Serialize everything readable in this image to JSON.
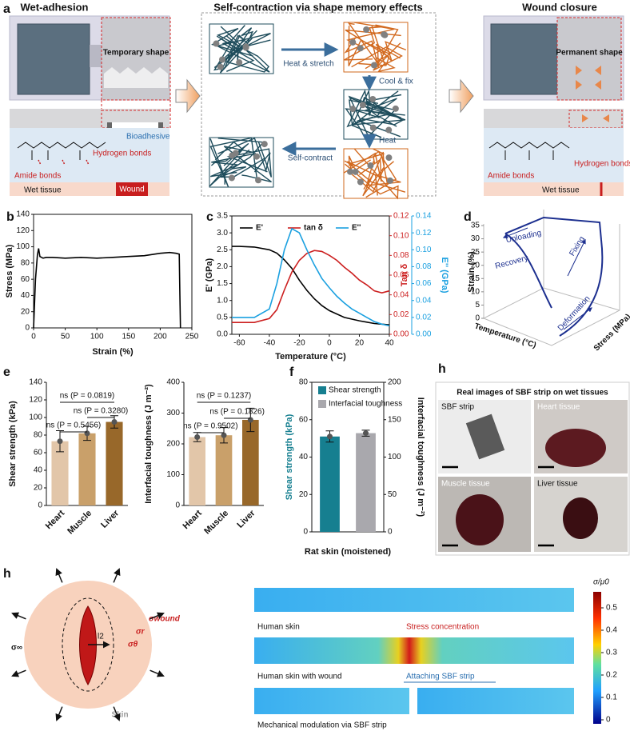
{
  "panel_a": {
    "label": "a",
    "titles": [
      "Wet-adhesion",
      "Self-contraction via shape memory effects",
      "Wound closure"
    ],
    "left": {
      "box": "Temporary shape",
      "bioadhesive": "Bioadhesive",
      "hydrogen": "Hydrogen bonds",
      "amide": "Amide bonds",
      "tissue": "Wet tissue",
      "wound": "Wound"
    },
    "middle": {
      "steps": [
        "Heat & stretch",
        "Cool & fix",
        "Heat",
        "Self-contract"
      ]
    },
    "right": {
      "box": "Permanent shape",
      "hydrogen": "Hydrogen bonds",
      "amide": "Amide bonds",
      "tissue": "Wet tissue"
    }
  },
  "panel_d": {
    "label": "d",
    "zlabel": "Strain (%)",
    "zticks": [
      35,
      30,
      25,
      20,
      15,
      10,
      5,
      0
    ],
    "annotations": [
      "Unloading",
      "Fixing",
      "Recovery",
      "Deformation"
    ],
    "xlabel": "Temperature (°C)",
    "ylabel": "Stress (MPa)"
  },
  "panel_photos": {
    "label": "h",
    "title": "Real images of SBF strip on wet tissues",
    "tiles": [
      "SBF strip",
      "Heart tissue",
      "Muscle tissue",
      "Liver tissue"
    ]
  },
  "panel_model": {
    "label": "h",
    "far_stress": "σ∞",
    "wound_stress": "σwound",
    "radial": "σr",
    "hoop": "σθ",
    "length": "l2",
    "skin": "Skin",
    "strips": [
      "Human skin",
      "Human skin with wound",
      "Mechanical modulation via SBF strip"
    ],
    "callouts": [
      "Stress concentration",
      "Attaching SBF strip"
    ],
    "colorbar": {
      "title": "σ/μ0",
      "ticks": [
        0.5,
        0.4,
        0.3,
        0.2,
        0.1,
        0
      ]
    }
  },
  "chart_data": [
    {
      "type": "line",
      "panel": "b",
      "xlabel": "Strain (%)",
      "ylabel": "Stress (MPa)",
      "x": [
        0,
        3,
        6,
        8,
        10,
        15,
        20,
        30,
        50,
        75,
        100,
        125,
        150,
        175,
        200,
        215,
        225,
        230,
        231,
        232
      ],
      "series": [
        {
          "color": "#000000",
          "values": [
            0,
            60,
            90,
            98,
            88,
            86,
            87,
            87,
            86,
            87,
            86,
            87,
            88,
            89,
            92,
            93,
            92,
            91,
            40,
            0
          ]
        }
      ],
      "xlim": [
        0,
        250
      ],
      "xticks": [
        0,
        50,
        100,
        150,
        200,
        250
      ],
      "ylim": [
        0,
        140
      ],
      "yticks": [
        0,
        20,
        40,
        60,
        80,
        100,
        120,
        140
      ]
    },
    {
      "type": "line",
      "panel": "c",
      "xlabel": "Temperature (°C)",
      "ylabel": "E' (GPa)",
      "y2label": "Tan δ",
      "y3label": "E'' (GPa)",
      "x": [
        -65,
        -60,
        -50,
        -40,
        -35,
        -30,
        -25,
        -20,
        -15,
        -10,
        -5,
        0,
        5,
        10,
        15,
        20,
        25,
        30,
        35,
        40
      ],
      "series": [
        {
          "name": "E'",
          "color": "#000000",
          "values": [
            2.6,
            2.6,
            2.58,
            2.5,
            2.4,
            2.2,
            1.95,
            1.6,
            1.3,
            1.05,
            0.85,
            0.7,
            0.6,
            0.5,
            0.45,
            0.4,
            0.36,
            0.32,
            0.3,
            0.28
          ]
        },
        {
          "name": "tan δ",
          "color": "#cc1f1f",
          "axis": "y2",
          "values": [
            0.012,
            0.012,
            0.012,
            0.016,
            0.025,
            0.045,
            0.063,
            0.075,
            0.082,
            0.085,
            0.084,
            0.08,
            0.075,
            0.068,
            0.062,
            0.055,
            0.05,
            0.044,
            0.042,
            0.044
          ]
        },
        {
          "name": "E''",
          "color": "#1aa0e0",
          "axis": "y3",
          "values": [
            0.02,
            0.02,
            0.02,
            0.03,
            0.06,
            0.1,
            0.125,
            0.12,
            0.1,
            0.082,
            0.066,
            0.055,
            0.045,
            0.037,
            0.03,
            0.025,
            0.02,
            0.015,
            0.012,
            0.01
          ]
        }
      ],
      "xlim": [
        -65,
        40
      ],
      "xticks": [
        -60,
        -40,
        -20,
        0,
        20,
        40
      ],
      "ylim": [
        0,
        3.5
      ],
      "yticks": [
        {
          "value": 0,
          "label": "0.0"
        },
        0.5,
        {
          "value": 1,
          "label": "1.0"
        },
        1.5,
        {
          "value": 2,
          "label": "2.0"
        },
        2.5,
        {
          "value": 3,
          "label": "3.0"
        },
        3.5
      ],
      "y2lim": [
        0,
        0.12
      ],
      "y2ticks": [
        {
          "value": 0,
          "label": "0.00"
        },
        0.02,
        0.04,
        0.06,
        0.08,
        {
          "value": 0.1,
          "label": "0.10"
        },
        0.12
      ],
      "y3lim": [
        0,
        0.14
      ],
      "y3ticks": [
        {
          "value": 0,
          "label": "0.00"
        },
        0.02,
        0.04,
        0.06,
        0.08,
        {
          "value": 0.1,
          "label": "0.10"
        },
        0.12,
        0.14
      ]
    },
    {
      "type": "bar",
      "panel": "e",
      "ylabel": "Shear strength (kPa)",
      "categories": [
        "Heart",
        "Muscle",
        "Liver"
      ],
      "values": [
        73,
        82,
        95
      ],
      "errors": [
        12,
        8,
        7
      ],
      "colors": [
        "#e2c6a9",
        "#c9a06a",
        "#98682a"
      ],
      "ylim": [
        0,
        140
      ],
      "yticks": [
        0,
        20,
        40,
        60,
        80,
        100,
        120,
        140
      ],
      "comparisons": [
        "ns (P = 0.5456)",
        "ns (P = 0.3280)",
        "ns (P = 0.0819)"
      ]
    },
    {
      "type": "bar",
      "ylabel": "Interfacial toughness (J m⁻²)",
      "categories": [
        "Heart",
        "Muscle",
        "Liver"
      ],
      "values": [
        222,
        228,
        278
      ],
      "errors": [
        15,
        25,
        38
      ],
      "colors": [
        "#e2c6a9",
        "#c9a06a",
        "#98682a"
      ],
      "ylim": [
        0,
        400
      ],
      "yticks": [
        0,
        100,
        200,
        300,
        400
      ],
      "comparisons": [
        "ns (P = 0.9502)",
        "ns (P = 0.1826)",
        "ns (P = 0.1237)"
      ]
    },
    {
      "type": "bar",
      "panel": "f",
      "categories": [
        "Rat skin (moistened)"
      ],
      "ylabel": "Shear strength (kPa)",
      "y2label": "Interfacial toughness (J m⁻²)",
      "series": [
        {
          "name": "Shear strength",
          "color": "#167f90",
          "values": [
            51
          ],
          "errors": [
            3
          ]
        },
        {
          "name": "Interfacial toughness",
          "color": "#a9a8ad",
          "axis": "y2",
          "values": [
            132
          ],
          "errors": [
            4
          ]
        }
      ],
      "ylim": [
        0,
        80
      ],
      "yticks": [
        0,
        20,
        40,
        60,
        80
      ],
      "y2lim": [
        0,
        200
      ],
      "y2ticks": [
        0,
        50,
        100,
        150,
        200
      ]
    }
  ]
}
